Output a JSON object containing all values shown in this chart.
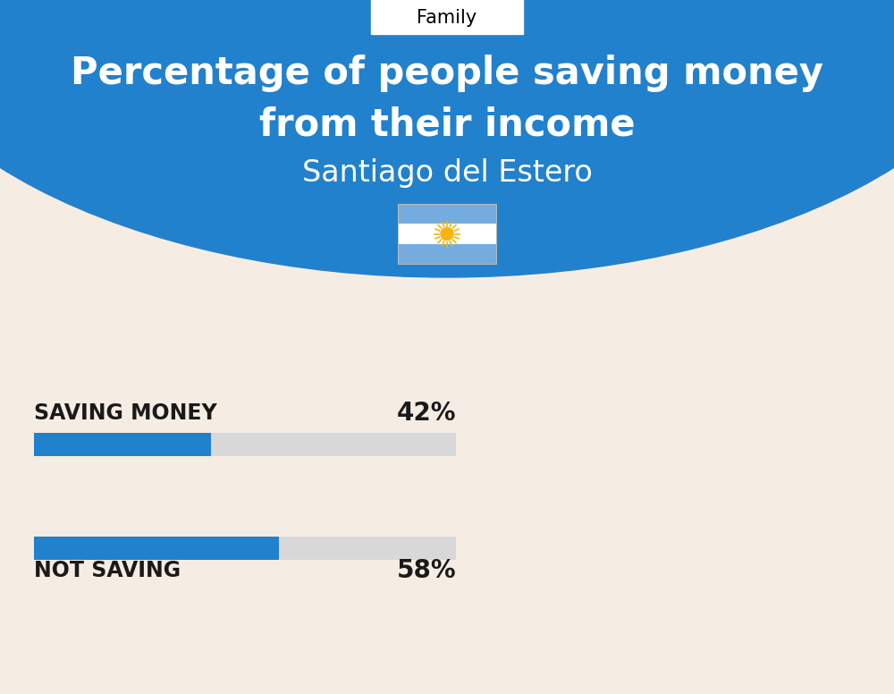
{
  "title_line1": "Percentage of people saving money",
  "title_line2": "from their income",
  "subtitle": "Santiago del Estero",
  "category_label": "Family",
  "bg_color": "#f5ede3",
  "header_bg_color": "#2181cc",
  "bar1_label": "SAVING MONEY",
  "bar1_value": 42,
  "bar1_pct": "42%",
  "bar2_label": "NOT SAVING",
  "bar2_value": 58,
  "bar2_pct": "58%",
  "bar_fill_color": "#2181cc",
  "bar_bg_color": "#d8d8d8",
  "title_color": "#ffffff",
  "subtitle_color": "#ffffff",
  "label_color": "#1a1a1a",
  "title_fontsize": 30,
  "subtitle_fontsize": 24,
  "label_fontsize": 17,
  "pct_fontsize": 20,
  "category_fontsize": 15,
  "fig_width": 10.0,
  "fig_height": 7.76,
  "dpi": 100
}
